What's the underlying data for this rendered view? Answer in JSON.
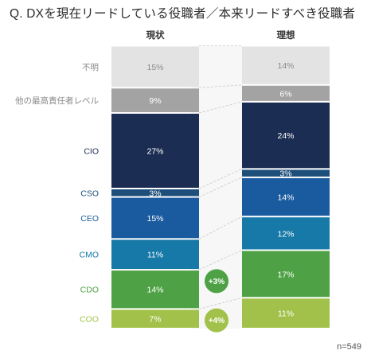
{
  "title": "Q. DXを現在リードしている役職者／本来リードすべき役職者",
  "note": "n=549",
  "colors": {
    "不明": "#e3e3e3",
    "他の最高責任者レベル": "#a3a3a3",
    "CIO": "#1b2d52",
    "CSO": "#1d4f7a",
    "CEO": "#1a5a9e",
    "CMO": "#1679a7",
    "CDO": "#4ea245",
    "COO": "#a2c14a"
  },
  "label_colors": {
    "不明": "#8a8a8a",
    "他の最高責任者レベル": "#8a8a8a",
    "CIO": "#1b2d52",
    "CSO": "#1d4f7a",
    "CEO": "#1a5a9e",
    "CMO": "#1679a7",
    "CDO": "#4ea245",
    "COO": "#a2c14a"
  },
  "text_colors": {
    "不明": "#8a8a8a",
    "他の最高責任者レベル": "#ffffff",
    "CIO": "#ffffff",
    "CSO": "#ffffff",
    "CEO": "#ffffff",
    "CMO": "#ffffff",
    "CDO": "#ffffff",
    "COO": "#ffffff"
  },
  "chart_data": {
    "type": "bar",
    "stacked": true,
    "percent": true,
    "categories": [
      "現状",
      "理想"
    ],
    "series": [
      {
        "name": "COO",
        "values": [
          7,
          11
        ]
      },
      {
        "name": "CDO",
        "values": [
          14,
          17
        ]
      },
      {
        "name": "CMO",
        "values": [
          11,
          12
        ]
      },
      {
        "name": "CEO",
        "values": [
          15,
          14
        ]
      },
      {
        "name": "CSO",
        "values": [
          3,
          3
        ]
      },
      {
        "name": "CIO",
        "values": [
          27,
          24
        ]
      },
      {
        "name": "他の最高責任者レベル",
        "values": [
          9,
          6
        ]
      },
      {
        "name": "不明",
        "values": [
          15,
          14
        ]
      }
    ],
    "annotations": [
      {
        "series": "CDO",
        "text": "+3%",
        "color": "#4ea245"
      },
      {
        "series": "COO",
        "text": "+4%",
        "color": "#a2c14a"
      }
    ]
  }
}
